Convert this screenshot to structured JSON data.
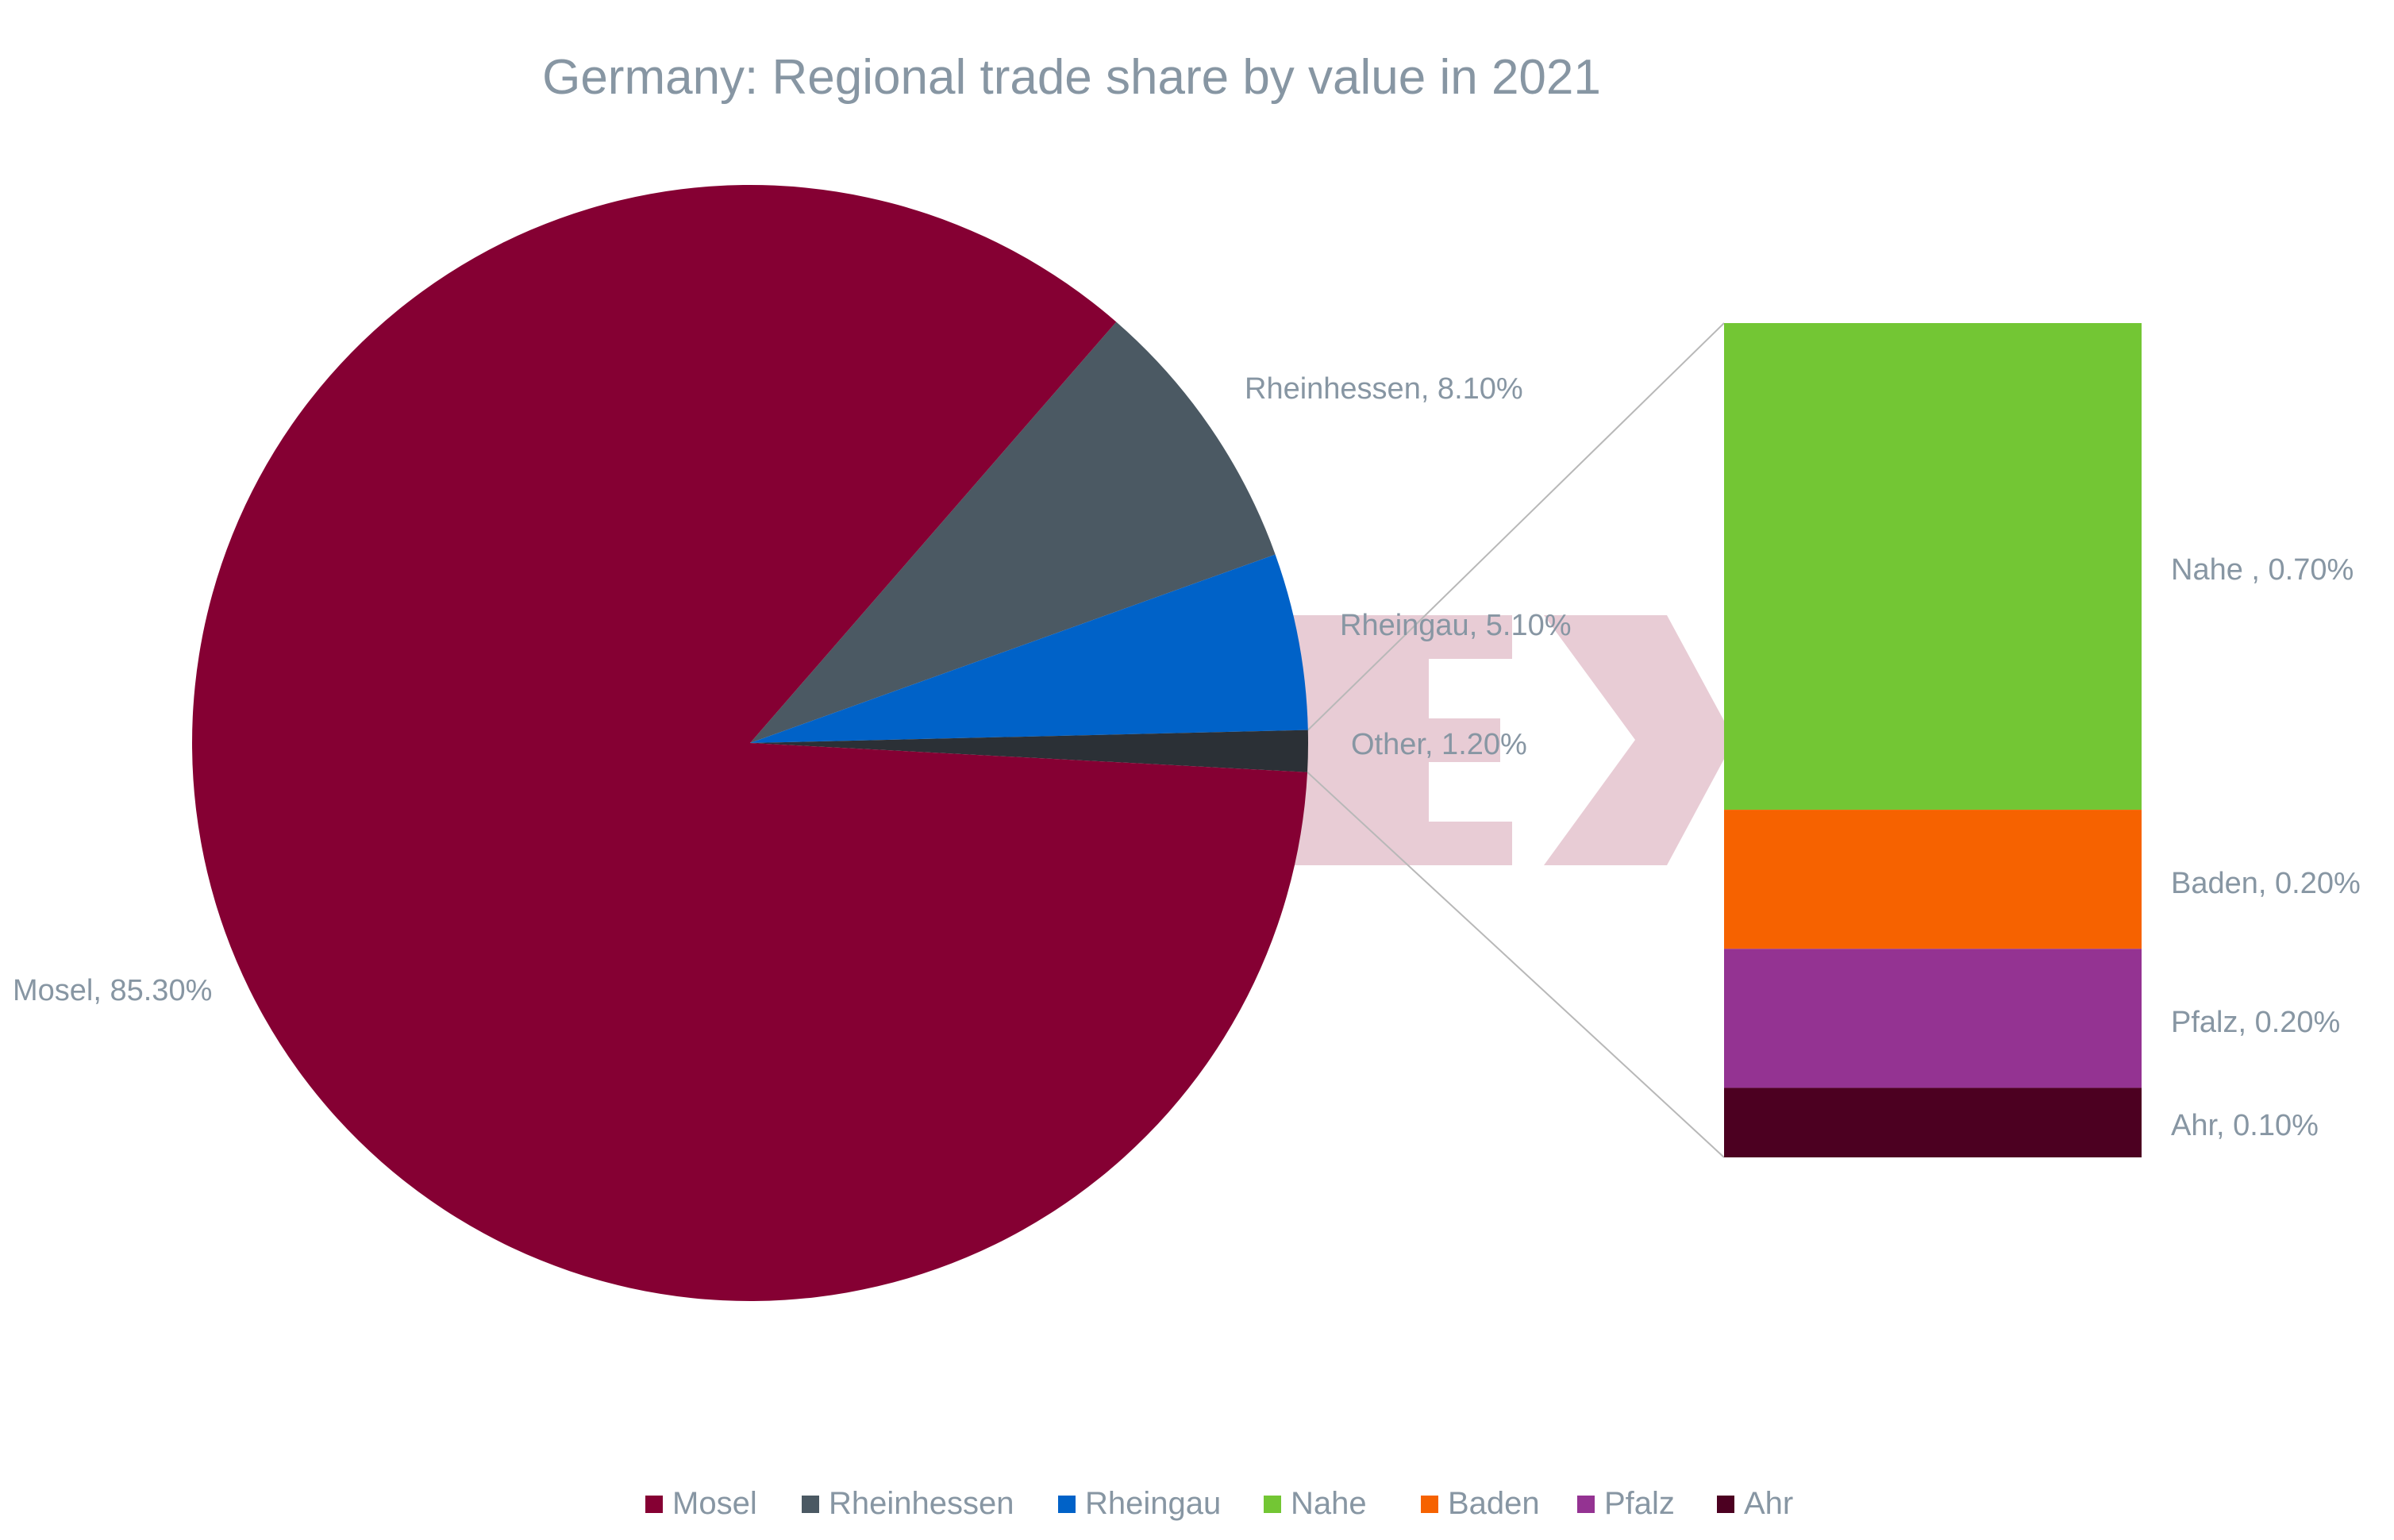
{
  "chart_data": {
    "type": "bar-of-pie",
    "title": "Germany: Regional trade share by value in 2021",
    "pie": {
      "slices": [
        {
          "name": "Mosel",
          "value": 85.3,
          "label": "Mosel, 85.30%",
          "color": "#850033"
        },
        {
          "name": "Rheinhessen",
          "value": 8.1,
          "label": "Rheinhessen, 8.10%",
          "color": "#4b5963"
        },
        {
          "name": "Rheingau",
          "value": 5.1,
          "label": "Rheingau, 5.10%",
          "color": "#0062c8"
        },
        {
          "name": "Other",
          "value": 1.2,
          "label": "Other, 1.20%",
          "color": "#2b3036"
        }
      ]
    },
    "bar": {
      "segments": [
        {
          "name": "Nahe",
          "value": 0.7,
          "label": "Nahe , 0.70%",
          "color": "#73c634"
        },
        {
          "name": "Baden",
          "value": 0.2,
          "label": "Baden, 0.20%",
          "color": "#f66200"
        },
        {
          "name": "Pfalz",
          "value": 0.2,
          "label": "Pfalz, 0.20%",
          "color": "#943392"
        },
        {
          "name": "Ahr",
          "value": 0.1,
          "label": "Ahr, 0.10%",
          "color": "#4c0021"
        }
      ]
    },
    "legend": {
      "position": "bottom",
      "items": [
        {
          "name": "Mosel",
          "color": "#850033"
        },
        {
          "name": "Rheinhessen",
          "color": "#4b5963"
        },
        {
          "name": "Rheingau",
          "color": "#0062c8"
        },
        {
          "name": "Nahe",
          "color": "#73c634"
        },
        {
          "name": "Baden",
          "color": "#f66200"
        },
        {
          "name": "Pfalz",
          "color": "#943392"
        },
        {
          "name": "Ahr",
          "color": "#4c0021"
        }
      ]
    },
    "watermark_color": "#e8ccd5"
  }
}
